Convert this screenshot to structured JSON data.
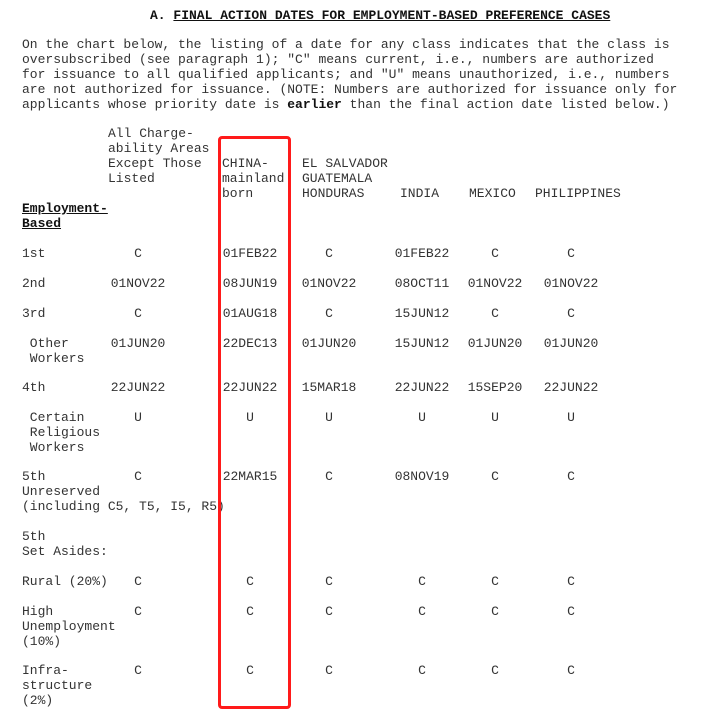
{
  "title": {
    "prefix": "A. ",
    "text": "FINAL ACTION DATES FOR EMPLOYMENT-BASED PREFERENCE CASES"
  },
  "intro": {
    "before_bold": "On the chart below, the listing of a date for any class indicates that the class is\noversubscribed (see paragraph 1); \"C\" means current, i.e., numbers are authorized\nfor issuance to all qualified applicants; and \"U\" means unauthorized, i.e., numbers\nare not authorized for issuance. (NOTE: Numbers are authorized for issuance only for\napplicants whose priority date is ",
    "bold": "earlier",
    "after_bold": " than the final action date listed below.)"
  },
  "table": {
    "row_header": "Employment-\nBased",
    "columns": [
      "All Charge-\nability Areas\nExcept Those\nListed",
      "CHINA-\nmainland\nborn",
      "EL SALVADOR\nGUATEMALA\nHONDURAS",
      "INDIA",
      "MEXICO",
      "PHILIPPINES"
    ],
    "rows": [
      {
        "label": "1st",
        "values": [
          "C",
          "01FEB22",
          "C",
          "01FEB22",
          "C",
          "C"
        ]
      },
      {
        "label": "2nd",
        "values": [
          "01NOV22",
          "08JUN19",
          "01NOV22",
          "08OCT11",
          "01NOV22",
          "01NOV22"
        ]
      },
      {
        "label": "3rd",
        "values": [
          "C",
          "01AUG18",
          "C",
          "15JUN12",
          "C",
          "C"
        ]
      },
      {
        "label": " Other\n Workers",
        "values": [
          "01JUN20",
          "22DEC13",
          "01JUN20",
          "15JUN12",
          "01JUN20",
          "01JUN20"
        ]
      },
      {
        "label": "4th",
        "values": [
          "22JUN22",
          "22JUN22",
          "15MAR18",
          "22JUN22",
          "15SEP20",
          "22JUN22"
        ]
      },
      {
        "label": " Certain\n Religious\n Workers",
        "values": [
          "U",
          "U",
          "U",
          "U",
          "U",
          "U"
        ]
      },
      {
        "label": "5th\nUnreserved\n(including C5, T5, I5, R5)",
        "values": [
          "C",
          "22MAR15",
          "C",
          "08NOV19",
          "C",
          "C"
        ]
      },
      {
        "label": "5th\nSet Asides:",
        "values": [
          "",
          "",
          "",
          "",
          "",
          ""
        ]
      },
      {
        "label": "Rural (20%)",
        "values": [
          "C",
          "C",
          "C",
          "C",
          "C",
          "C"
        ]
      },
      {
        "label": "High\nUnemployment\n(10%)",
        "values": [
          "C",
          "C",
          "C",
          "C",
          "C",
          "C"
        ]
      },
      {
        "label": "Infra-\nstructure\n(2%)",
        "values": [
          "C",
          "C",
          "C",
          "C",
          "C",
          "C"
        ]
      }
    ]
  },
  "highlight_color": "#ff1a1a"
}
